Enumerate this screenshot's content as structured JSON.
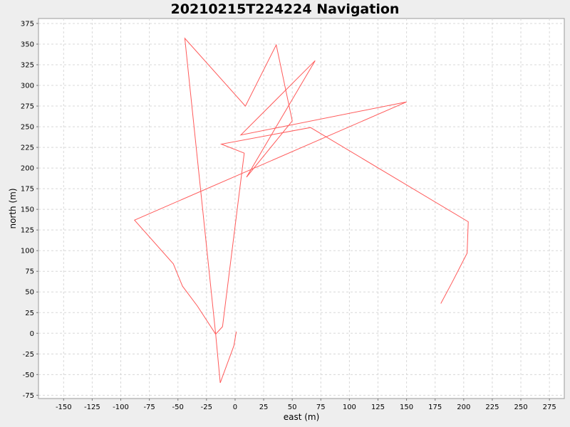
{
  "chart_data": {
    "type": "line",
    "title": "20210215T224224 Navigation",
    "xlabel": "east (m)",
    "ylabel": "north (m)",
    "xlim": [
      -172,
      288
    ],
    "ylim": [
      -79,
      381
    ],
    "x_ticks": [
      -150,
      -125,
      -100,
      -75,
      -50,
      -25,
      0,
      25,
      50,
      75,
      100,
      125,
      150,
      175,
      200,
      225,
      250,
      275
    ],
    "y_ticks": [
      -75,
      -50,
      -25,
      0,
      25,
      50,
      75,
      100,
      125,
      150,
      175,
      200,
      225,
      250,
      275,
      300,
      325,
      350,
      375
    ],
    "grid": true,
    "legend": "none",
    "colors": {
      "series": "#ff5a5a",
      "grid": "#d8d8d8",
      "plot_bg": "#ffffff",
      "page_bg": "#eeeeee"
    },
    "series": [
      {
        "x": [
          1,
          -1,
          -13,
          -17,
          -44,
          9,
          36,
          50,
          10,
          70,
          5,
          150,
          -88,
          -54,
          -46,
          -33,
          -17,
          -11,
          8,
          -12,
          66,
          204,
          203,
          190,
          180
        ],
        "y": [
          2,
          -15,
          -60,
          -1,
          357,
          275,
          349,
          257,
          189,
          330,
          240,
          280,
          137,
          84,
          57,
          33,
          -1,
          8,
          218,
          229,
          249,
          135,
          97,
          62,
          36
        ]
      }
    ]
  }
}
